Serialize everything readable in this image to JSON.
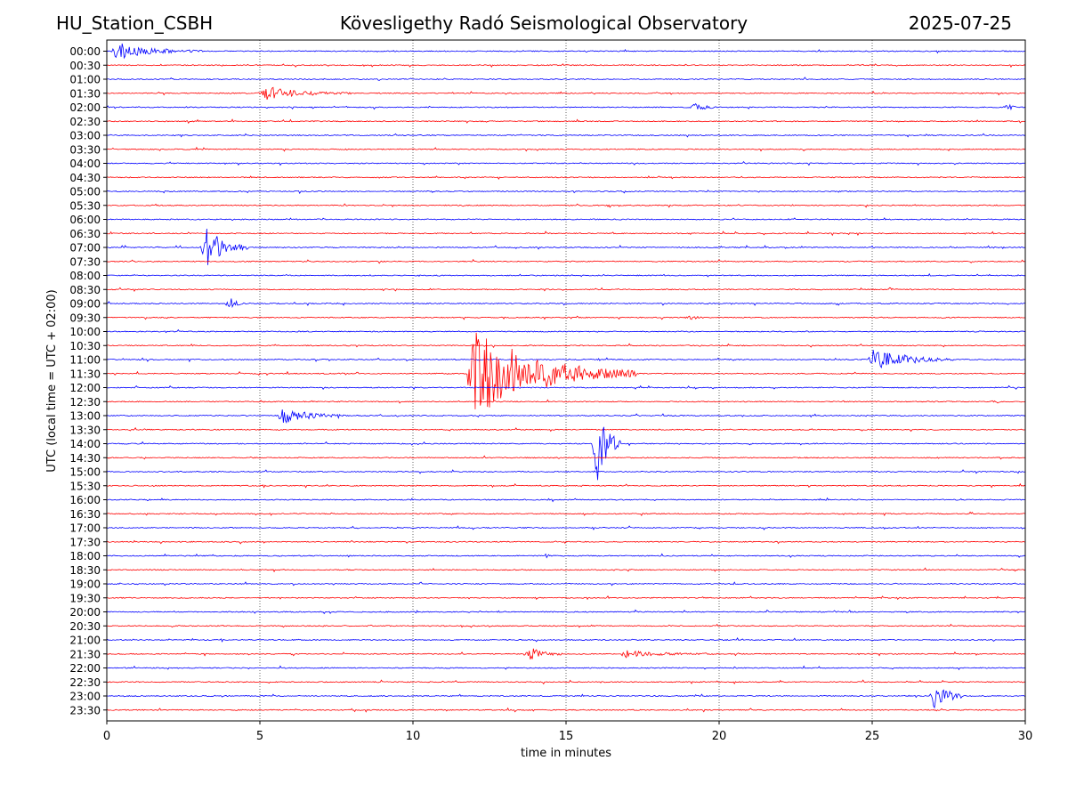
{
  "header": {
    "station": "HU_Station_CSBH",
    "observatory": "Kövesligethy Radó Seismological Observatory",
    "date": "2025-07-25"
  },
  "chart_data": {
    "type": "line",
    "title": "Kövesligethy Radó Seismological Observatory",
    "xlabel": "time in minutes",
    "ylabel": "UTC (local time = UTC + 02:00)",
    "xlim": [
      0,
      30
    ],
    "x_ticks": [
      0,
      5,
      10,
      15,
      20,
      25,
      30
    ],
    "grid": "vertical dotted lines at 5-minute intervals",
    "trace_colors": [
      "#0000ff",
      "#ff0000"
    ],
    "rows": [
      "00:00",
      "00:30",
      "01:00",
      "01:30",
      "02:00",
      "02:30",
      "03:00",
      "03:30",
      "04:00",
      "04:30",
      "05:00",
      "05:30",
      "06:00",
      "06:30",
      "07:00",
      "07:30",
      "08:00",
      "08:30",
      "09:00",
      "09:30",
      "10:00",
      "10:30",
      "11:00",
      "11:30",
      "12:00",
      "12:30",
      "13:00",
      "13:30",
      "14:00",
      "14:30",
      "15:00",
      "15:30",
      "16:00",
      "16:30",
      "17:00",
      "17:30",
      "18:00",
      "18:30",
      "19:00",
      "19:30",
      "20:00",
      "20:30",
      "21:00",
      "21:30",
      "22:00",
      "22:30",
      "23:00",
      "23:30"
    ],
    "events": [
      {
        "row": "00:00",
        "start_min": 0.2,
        "amp": 0.6,
        "dur_min": 3.0
      },
      {
        "row": "01:30",
        "start_min": 5.0,
        "amp": 0.5,
        "dur_min": 3.0
      },
      {
        "row": "02:00",
        "start_min": 19.1,
        "amp": 0.3,
        "dur_min": 0.8
      },
      {
        "row": "02:00",
        "start_min": 29.3,
        "amp": 0.25,
        "dur_min": 0.4
      },
      {
        "row": "07:00",
        "start_min": 3.1,
        "amp": 1.5,
        "dur_min": 1.5
      },
      {
        "row": "09:00",
        "start_min": 3.9,
        "amp": 0.35,
        "dur_min": 0.7
      },
      {
        "row": "09:30",
        "start_min": 18.9,
        "amp": 0.15,
        "dur_min": 0.6
      },
      {
        "row": "11:00",
        "start_min": 24.9,
        "amp": 0.9,
        "dur_min": 2.8
      },
      {
        "row": "11:30",
        "start_min": 11.8,
        "amp": 3.5,
        "dur_min": 5.5
      },
      {
        "row": "12:30",
        "start_min": 28.9,
        "amp": 0.12,
        "dur_min": 0.3
      },
      {
        "row": "13:00",
        "start_min": 5.6,
        "amp": 0.6,
        "dur_min": 2.3
      },
      {
        "row": "14:00",
        "start_min": 15.9,
        "amp": 3.1,
        "dur_min": 0.9
      },
      {
        "row": "21:30",
        "start_min": 13.7,
        "amp": 0.5,
        "dur_min": 1.2
      },
      {
        "row": "21:30",
        "start_min": 16.8,
        "amp": 0.25,
        "dur_min": 3.0
      },
      {
        "row": "23:00",
        "start_min": 26.9,
        "amp": 1.0,
        "dur_min": 1.2
      }
    ]
  }
}
